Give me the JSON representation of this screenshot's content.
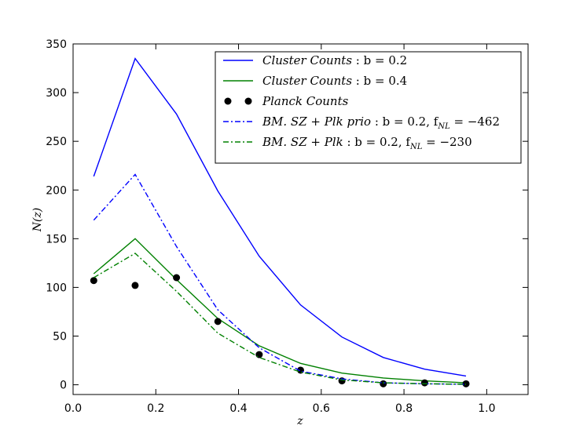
{
  "chart_data": {
    "type": "line",
    "xlabel": "z",
    "ylabel": "N(z)",
    "xlim": [
      0.0,
      1.1
    ],
    "ylim": [
      -10,
      350
    ],
    "xticks": [
      0.0,
      0.2,
      0.4,
      0.6,
      0.8,
      1.0
    ],
    "xtick_labels": [
      "0.0",
      "0.2",
      "0.4",
      "0.6",
      "0.8",
      "1.0"
    ],
    "yticks": [
      0,
      50,
      100,
      150,
      200,
      250,
      300,
      350
    ],
    "ytick_labels": [
      "0",
      "50",
      "100",
      "150",
      "200",
      "250",
      "300",
      "350"
    ],
    "grid": false,
    "legend_position": "top-right",
    "x": [
      0.05,
      0.15,
      0.25,
      0.35,
      0.45,
      0.55,
      0.65,
      0.75,
      0.85,
      0.95
    ],
    "series": [
      {
        "name": "Cluster Counts : b = 0.2",
        "style": "solid",
        "color": "#0000ff",
        "values": [
          214,
          335,
          278,
          199,
          132,
          82,
          49,
          28,
          16,
          9
        ]
      },
      {
        "name": "Cluster Counts : b = 0.4",
        "style": "solid",
        "color": "#008000",
        "values": [
          114,
          150,
          108,
          68,
          40,
          22,
          12,
          7,
          4,
          2
        ]
      },
      {
        "name": "Planck Counts",
        "style": "markers",
        "color": "#000000",
        "values": [
          107,
          102,
          110,
          65,
          31,
          15,
          4,
          1,
          2,
          1
        ]
      },
      {
        "name": "BM. SZ + Plk prio : b = 0.2, f_NL = −462",
        "style": "dashdot",
        "color": "#0000ff",
        "values": [
          169,
          216,
          142,
          77,
          38,
          14,
          6,
          2,
          1,
          0.5
        ]
      },
      {
        "name": "BM. SZ + Plk : b = 0.2, f_NL = −230",
        "style": "dashdot",
        "color": "#008000",
        "values": [
          110,
          135,
          96,
          53,
          28,
          13,
          5,
          2,
          1,
          0.5
        ]
      }
    ],
    "legend": [
      {
        "prefix": "Cluster Counts",
        "suffix": " : b = 0.2",
        "sub": "",
        "tail": ""
      },
      {
        "prefix": "Cluster Counts",
        "suffix": " : b = 0.4",
        "sub": "",
        "tail": ""
      },
      {
        "prefix": "Planck Counts",
        "suffix": "",
        "sub": "",
        "tail": ""
      },
      {
        "prefix": "BM. SZ + Plk prio",
        "suffix": " : b = 0.2, f",
        "sub": "NL",
        "tail": " = −462"
      },
      {
        "prefix": "BM. SZ + Plk",
        "suffix": " : b = 0.2, f",
        "sub": "NL",
        "tail": " = −230"
      }
    ]
  }
}
